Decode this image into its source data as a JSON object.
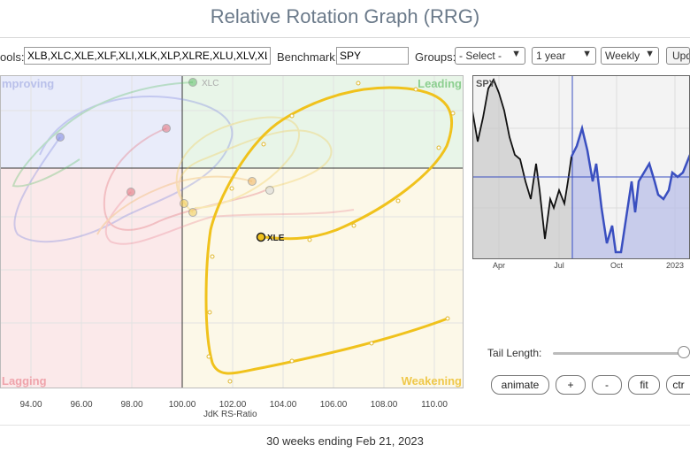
{
  "page": {
    "title": "Relative Rotation Graph (RRG)"
  },
  "controls": {
    "symbols_label": "ools:",
    "symbols_value": "XLB,XLC,XLE,XLF,XLI,XLK,XLP,XLRE,XLU,XLV,XL",
    "benchmark_label": "Benchmark:",
    "benchmark_value": "SPY",
    "groups_label": "Groups:",
    "groups_value": "- Select -",
    "period_value": "1 year",
    "frequency_value": "Weekly",
    "update_label": "Upd"
  },
  "rrg": {
    "quadrants": {
      "improving": "mproving",
      "leading": "Leading",
      "lagging": "Lagging",
      "weakening": "Weakening"
    },
    "quadrant_colors": {
      "improving": "#e9ecfa",
      "leading": "#e8f5e8",
      "lagging": "#fbe9ea",
      "weakening": "#fcf8e8"
    },
    "faded_label": "XLC",
    "highlight_label": "XLE",
    "highlight_color": "#f0c21c",
    "x_axis": {
      "label": "JdK RS-Ratio",
      "ticks": [
        "94.00",
        "96.00",
        "98.00",
        "100.00",
        "102.00",
        "104.00",
        "106.00",
        "108.00",
        "110.00"
      ]
    }
  },
  "price_chart": {
    "symbol": "SPY",
    "x_ticks": [
      "Apr",
      "Jul",
      "Oct",
      "2023"
    ],
    "line_colors": {
      "first": "#111111",
      "second": "#3a4fc0"
    }
  },
  "tail": {
    "label": "Tail Length:"
  },
  "buttons": {
    "animate": "animate",
    "plus": "+",
    "minus": "-",
    "fit": "fit",
    "center": "ctr"
  },
  "footer": {
    "text": "30 weeks ending Feb 21, 2023"
  }
}
